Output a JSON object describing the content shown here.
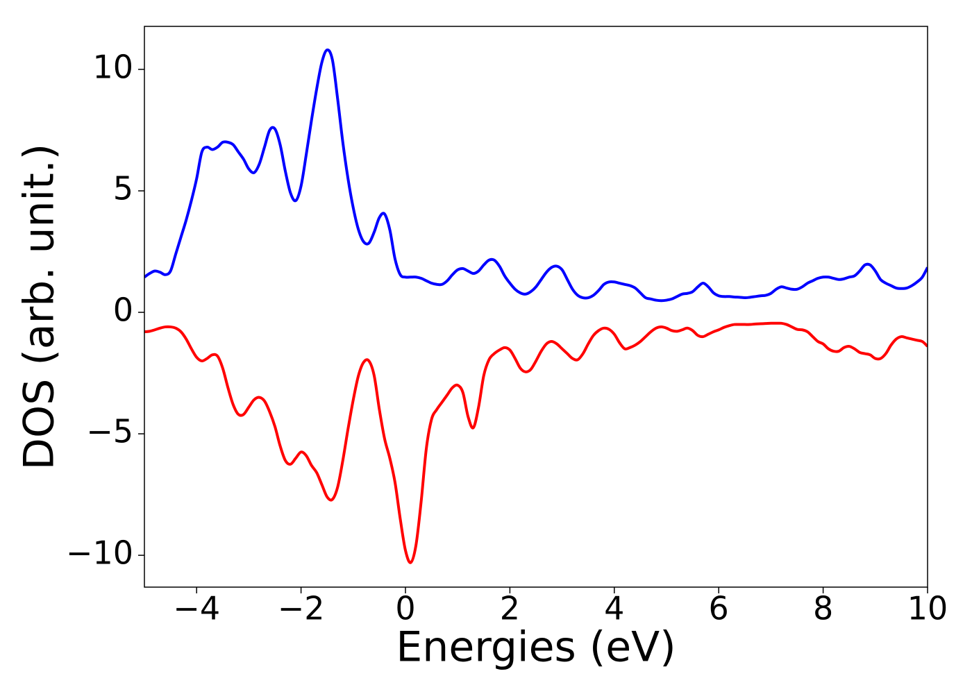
{
  "chart_data": {
    "type": "line",
    "xlabel": "Energies (eV)",
    "ylabel": "DOS (arb. unit.)",
    "xlim": [
      -5,
      10
    ],
    "ylim": [
      -11.31,
      11.77
    ],
    "xticks": [
      {
        "value": -4,
        "label": "−4"
      },
      {
        "value": -2,
        "label": "−2"
      },
      0,
      2,
      4,
      6,
      8,
      10
    ],
    "yticks": [
      {
        "value": -10,
        "label": "−10"
      },
      {
        "value": -5,
        "label": "−5"
      },
      0,
      5,
      10
    ],
    "grid": false,
    "x": [
      -5,
      -4.9,
      -4.8,
      -4.7,
      -4.6,
      -4.5,
      -4.4,
      -4.3,
      -4.2,
      -4.1,
      -4,
      -3.9,
      -3.8,
      -3.7,
      -3.6,
      -3.5,
      -3.4,
      -3.3,
      -3.2,
      -3.1,
      -3,
      -2.9,
      -2.8,
      -2.7,
      -2.6,
      -2.5,
      -2.4,
      -2.3,
      -2.2,
      -2.1,
      -2,
      -1.9,
      -1.8,
      -1.7,
      -1.6,
      -1.5,
      -1.4,
      -1.3,
      -1.2,
      -1.1,
      -1,
      -0.9,
      -0.8,
      -0.7,
      -0.6,
      -0.5,
      -0.4,
      -0.3,
      -0.2,
      -0.1,
      0,
      0.1,
      0.2,
      0.3,
      0.4,
      0.5,
      0.6,
      0.7,
      0.8,
      0.9,
      1,
      1.1,
      1.2,
      1.3,
      1.4,
      1.5,
      1.6,
      1.7,
      1.8,
      1.9,
      2,
      2.1,
      2.2,
      2.3,
      2.4,
      2.5,
      2.6,
      2.7,
      2.8,
      2.9,
      3,
      3.1,
      3.2,
      3.3,
      3.4,
      3.5,
      3.6,
      3.7,
      3.8,
      3.9,
      4,
      4.1,
      4.2,
      4.3,
      4.4,
      4.5,
      4.6,
      4.7,
      4.8,
      4.9,
      5,
      5.1,
      5.2,
      5.3,
      5.4,
      5.5,
      5.6,
      5.7,
      5.8,
      5.9,
      6,
      6.1,
      6.2,
      6.3,
      6.4,
      6.5,
      6.6,
      6.7,
      6.8,
      6.9,
      7,
      7.1,
      7.2,
      7.3,
      7.4,
      7.5,
      7.6,
      7.7,
      7.8,
      7.9,
      8,
      8.1,
      8.2,
      8.3,
      8.4,
      8.5,
      8.6,
      8.7,
      8.8,
      8.9,
      9,
      9.1,
      9.2,
      9.3,
      9.4,
      9.5,
      9.6,
      9.7,
      9.8,
      9.9,
      10
    ],
    "series": [
      {
        "color": "#0000ff",
        "values": [
          1.45,
          1.6,
          1.7,
          1.65,
          1.55,
          1.7,
          2.4,
          3.1,
          3.8,
          4.6,
          5.5,
          6.6,
          6.8,
          6.7,
          6.8,
          7.0,
          7.0,
          6.9,
          6.6,
          6.3,
          5.9,
          5.75,
          6.1,
          6.8,
          7.5,
          7.55,
          6.9,
          5.8,
          4.9,
          4.6,
          5.2,
          6.5,
          7.9,
          9.2,
          10.3,
          10.8,
          10.4,
          8.8,
          7.0,
          5.5,
          4.3,
          3.4,
          2.9,
          2.85,
          3.3,
          3.9,
          4.05,
          3.4,
          2.2,
          1.55,
          1.45,
          1.45,
          1.45,
          1.4,
          1.3,
          1.2,
          1.15,
          1.15,
          1.3,
          1.55,
          1.75,
          1.8,
          1.7,
          1.6,
          1.7,
          1.95,
          2.15,
          2.15,
          1.9,
          1.5,
          1.2,
          0.95,
          0.8,
          0.75,
          0.85,
          1.05,
          1.35,
          1.65,
          1.85,
          1.9,
          1.75,
          1.35,
          0.95,
          0.7,
          0.6,
          0.6,
          0.7,
          0.9,
          1.15,
          1.25,
          1.25,
          1.2,
          1.15,
          1.1,
          1.0,
          0.8,
          0.6,
          0.55,
          0.5,
          0.48,
          0.5,
          0.55,
          0.65,
          0.75,
          0.78,
          0.85,
          1.05,
          1.2,
          1.05,
          0.8,
          0.68,
          0.65,
          0.65,
          0.63,
          0.62,
          0.6,
          0.62,
          0.65,
          0.68,
          0.7,
          0.78,
          0.95,
          1.05,
          1.0,
          0.95,
          0.95,
          1.05,
          1.2,
          1.3,
          1.4,
          1.45,
          1.45,
          1.4,
          1.35,
          1.38,
          1.45,
          1.5,
          1.7,
          1.95,
          1.95,
          1.7,
          1.35,
          1.2,
          1.1,
          1.0,
          0.98,
          1.0,
          1.1,
          1.25,
          1.45,
          1.85
        ]
      },
      {
        "color": "#ff0000",
        "values": [
          -0.8,
          -0.78,
          -0.72,
          -0.65,
          -0.6,
          -0.6,
          -0.65,
          -0.8,
          -1.1,
          -1.5,
          -1.85,
          -2.0,
          -1.9,
          -1.75,
          -1.8,
          -2.3,
          -3.1,
          -3.8,
          -4.2,
          -4.2,
          -3.9,
          -3.6,
          -3.5,
          -3.65,
          -4.1,
          -4.7,
          -5.5,
          -6.1,
          -6.25,
          -6.0,
          -5.75,
          -5.9,
          -6.3,
          -6.6,
          -7.1,
          -7.6,
          -7.7,
          -7.2,
          -6.1,
          -4.8,
          -3.6,
          -2.6,
          -2.05,
          -2.0,
          -2.6,
          -4.0,
          -5.2,
          -6.0,
          -7.0,
          -8.5,
          -9.8,
          -10.3,
          -9.6,
          -7.8,
          -5.6,
          -4.4,
          -4.0,
          -3.7,
          -3.4,
          -3.1,
          -3.0,
          -3.3,
          -4.3,
          -4.75,
          -3.9,
          -2.6,
          -1.95,
          -1.7,
          -1.55,
          -1.45,
          -1.55,
          -1.9,
          -2.3,
          -2.45,
          -2.35,
          -2.0,
          -1.6,
          -1.3,
          -1.2,
          -1.3,
          -1.5,
          -1.7,
          -1.9,
          -1.95,
          -1.7,
          -1.3,
          -0.95,
          -0.75,
          -0.65,
          -0.7,
          -0.9,
          -1.25,
          -1.5,
          -1.45,
          -1.35,
          -1.2,
          -1.0,
          -0.8,
          -0.65,
          -0.6,
          -0.65,
          -0.75,
          -0.78,
          -0.72,
          -0.65,
          -0.75,
          -0.95,
          -1.0,
          -0.9,
          -0.8,
          -0.72,
          -0.62,
          -0.55,
          -0.5,
          -0.5,
          -0.5,
          -0.5,
          -0.48,
          -0.47,
          -0.46,
          -0.45,
          -0.45,
          -0.45,
          -0.5,
          -0.6,
          -0.7,
          -0.72,
          -0.8,
          -1.0,
          -1.2,
          -1.3,
          -1.5,
          -1.6,
          -1.6,
          -1.45,
          -1.4,
          -1.5,
          -1.65,
          -1.7,
          -1.75,
          -1.9,
          -1.9,
          -1.7,
          -1.35,
          -1.1,
          -1.0,
          -1.05,
          -1.1,
          -1.15,
          -1.2,
          -1.4
        ]
      }
    ]
  }
}
